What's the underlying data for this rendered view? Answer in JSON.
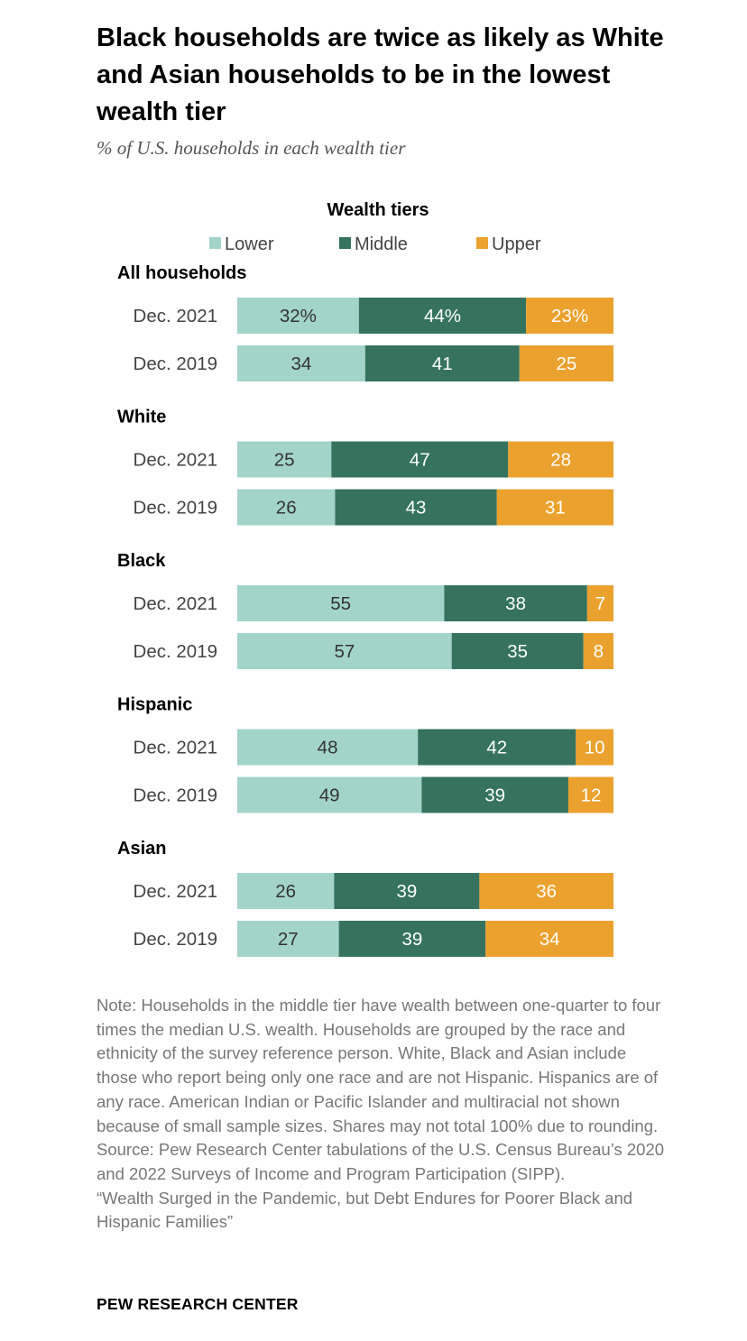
{
  "title": "Black households are twice as likely as White and Asian households to be in the lowest wealth tier",
  "subtitle": "% of U.S. households in each wealth tier",
  "colors": {
    "lower": "#a3d4c9",
    "middle": "#35735f",
    "upper": "#eba12d",
    "text_dark": "#333333",
    "text_light": "#ffffff"
  },
  "chart_data": {
    "type": "bar",
    "orientation": "horizontal-stacked-100",
    "legend_title": "Wealth tiers",
    "legend_position": "top",
    "series_names": [
      "Lower",
      "Middle",
      "Upper"
    ],
    "groups": [
      {
        "label": "All households",
        "rows": [
          {
            "label": "Dec. 2021",
            "values": [
              32,
              44,
              23
            ],
            "labels": [
              "32%",
              "44%",
              "23%"
            ]
          },
          {
            "label": "Dec. 2019",
            "values": [
              34,
              41,
              25
            ],
            "labels": [
              "34",
              "41",
              "25"
            ]
          }
        ]
      },
      {
        "label": "White",
        "rows": [
          {
            "label": "Dec. 2021",
            "values": [
              25,
              47,
              28
            ],
            "labels": [
              "25",
              "47",
              "28"
            ]
          },
          {
            "label": "Dec. 2019",
            "values": [
              26,
              43,
              31
            ],
            "labels": [
              "26",
              "43",
              "31"
            ]
          }
        ]
      },
      {
        "label": "Black",
        "rows": [
          {
            "label": "Dec. 2021",
            "values": [
              55,
              38,
              7
            ],
            "labels": [
              "55",
              "38",
              "7"
            ]
          },
          {
            "label": "Dec. 2019",
            "values": [
              57,
              35,
              8
            ],
            "labels": [
              "57",
              "35",
              "8"
            ]
          }
        ]
      },
      {
        "label": "Hispanic",
        "rows": [
          {
            "label": "Dec. 2021",
            "values": [
              48,
              42,
              10
            ],
            "labels": [
              "48",
              "42",
              "10"
            ]
          },
          {
            "label": "Dec. 2019",
            "values": [
              49,
              39,
              12
            ],
            "labels": [
              "49",
              "39",
              "12"
            ]
          }
        ]
      },
      {
        "label": "Asian",
        "rows": [
          {
            "label": "Dec. 2021",
            "values": [
              26,
              39,
              36
            ],
            "labels": [
              "26",
              "39",
              "36"
            ]
          },
          {
            "label": "Dec. 2019",
            "values": [
              27,
              39,
              34
            ],
            "labels": [
              "27",
              "39",
              "34"
            ]
          }
        ]
      }
    ]
  },
  "notes": [
    "Note: Households in the middle tier have wealth between one-quarter to four times the median U.S. wealth. Households are grouped by the race and ethnicity of the survey reference person. White, Black and Asian include those who report being only one race and are not Hispanic. Hispanics are of any race. American Indian or Pacific Islander and multiracial not shown because of small sample sizes. Shares may not total 100% due to rounding.",
    "Source: Pew Research Center tabulations of the U.S. Census Bureau’s 2020 and 2022 Surveys of Income and Program Participation (SIPP).",
    "“Wealth Surged in the Pandemic, but Debt Endures for Poorer Black and Hispanic Families”"
  ],
  "footer": "PEW RESEARCH CENTER"
}
